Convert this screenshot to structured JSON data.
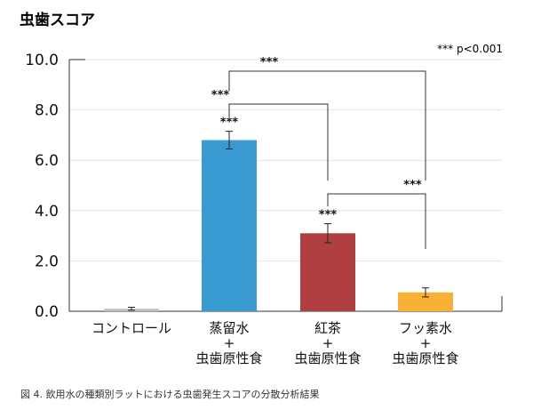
{
  "chart_data": {
    "type": "bar",
    "title": "虫歯スコア",
    "significance_note": "*** p<0.001",
    "ylim": [
      0,
      10
    ],
    "yticks": [
      "0.0",
      "2.0",
      "4.0",
      "6.0",
      "8.0",
      "10.0"
    ],
    "grid": true,
    "categories": [
      [
        "コントロール"
      ],
      [
        "蒸留水",
        "+",
        "虫歯原性食"
      ],
      [
        "紅茶",
        "+",
        "虫歯原性食"
      ],
      [
        "フッ素水",
        "+",
        "虫歯原性食"
      ]
    ],
    "values": [
      0.1,
      6.8,
      3.1,
      0.75
    ],
    "errors": [
      0.06,
      0.35,
      0.38,
      0.18
    ],
    "colors": [
      "#c0c0c0",
      "#3a9bd3",
      "#b04040",
      "#f8b035"
    ],
    "bar_annotations": [
      "",
      "***",
      "***",
      ""
    ],
    "brackets": [
      {
        "from": 1,
        "to": 3,
        "label": "***"
      },
      {
        "from": 1,
        "to": 2,
        "label": "***"
      },
      {
        "from": 2,
        "to": 3,
        "label": "***"
      }
    ]
  },
  "caption": "図 4. 飲用水の種類別ラットにおける虫歯発生スコアの分散分析結果"
}
